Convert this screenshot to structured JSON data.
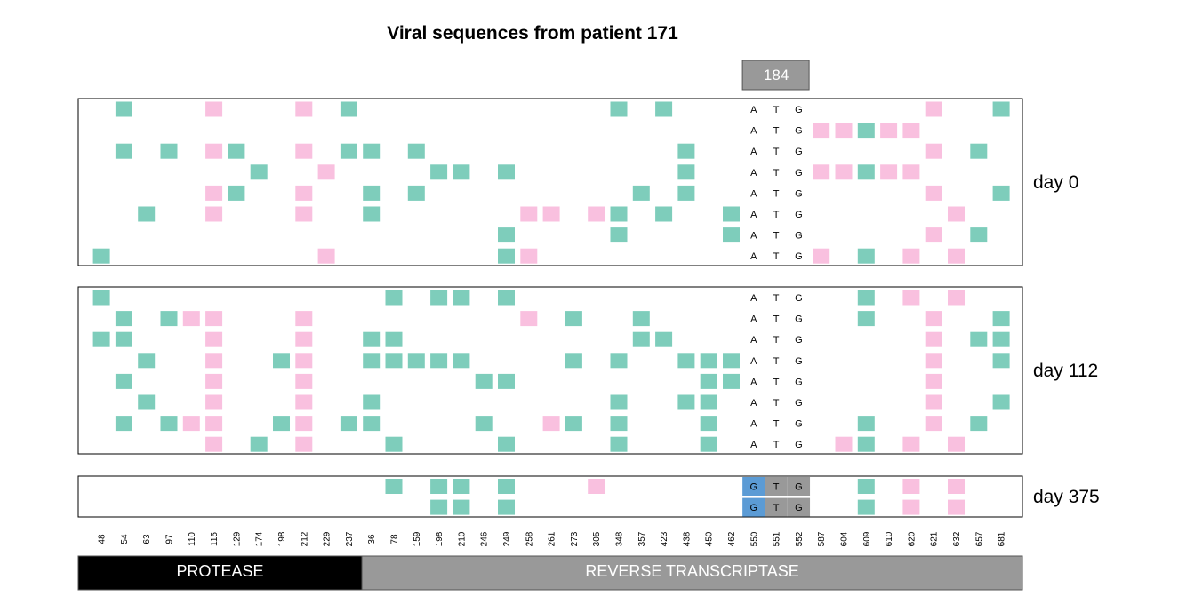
{
  "chart_data": {
    "type": "heatmap",
    "title": "Viral sequences from patient 171",
    "highlight_position": "184",
    "columns": [
      "48",
      "54",
      "63",
      "97",
      "110",
      "115",
      "129",
      "174",
      "198",
      "212",
      "229",
      "237",
      "36",
      "78",
      "159",
      "198",
      "210",
      "246",
      "249",
      "258",
      "261",
      "273",
      "305",
      "348",
      "357",
      "423",
      "438",
      "450",
      "462",
      "550",
      "551",
      "552",
      "587",
      "604",
      "609",
      "610",
      "620",
      "621",
      "632",
      "657",
      "681"
    ],
    "codon_columns": [
      29,
      30,
      31
    ],
    "colors": {
      "green": "#7ecdbb",
      "pink": "#f9c0df",
      "blue": "#5b9bd5",
      "codon_bg": "#999999",
      "protease": "#000000",
      "rt": "#999999"
    },
    "legend_keys": {
      "g": "green",
      "p": "pink"
    },
    "panels": [
      {
        "label": "day 0",
        "rows": [
          {
            "codon": [
              "A",
              "T",
              "G"
            ],
            "cells": [
              [
                1,
                "g"
              ],
              [
                5,
                "p"
              ],
              [
                9,
                "p"
              ],
              [
                11,
                "g"
              ],
              [
                23,
                "g"
              ],
              [
                25,
                "g"
              ],
              [
                37,
                "p"
              ],
              [
                40,
                "g"
              ]
            ]
          },
          {
            "codon": [
              "A",
              "T",
              "G"
            ],
            "cells": [
              [
                32,
                "p"
              ],
              [
                33,
                "p"
              ],
              [
                34,
                "g"
              ],
              [
                35,
                "p"
              ],
              [
                36,
                "p"
              ]
            ]
          },
          {
            "codon": [
              "A",
              "T",
              "G"
            ],
            "cells": [
              [
                1,
                "g"
              ],
              [
                3,
                "g"
              ],
              [
                5,
                "p"
              ],
              [
                6,
                "g"
              ],
              [
                9,
                "p"
              ],
              [
                11,
                "g"
              ],
              [
                12,
                "g"
              ],
              [
                14,
                "g"
              ],
              [
                26,
                "g"
              ],
              [
                37,
                "p"
              ],
              [
                39,
                "g"
              ]
            ]
          },
          {
            "codon": [
              "A",
              "T",
              "G"
            ],
            "cells": [
              [
                7,
                "g"
              ],
              [
                10,
                "p"
              ],
              [
                15,
                "g"
              ],
              [
                16,
                "g"
              ],
              [
                18,
                "g"
              ],
              [
                26,
                "g"
              ],
              [
                32,
                "p"
              ],
              [
                33,
                "p"
              ],
              [
                34,
                "g"
              ],
              [
                35,
                "p"
              ],
              [
                36,
                "p"
              ]
            ]
          },
          {
            "codon": [
              "A",
              "T",
              "G"
            ],
            "cells": [
              [
                5,
                "p"
              ],
              [
                6,
                "g"
              ],
              [
                9,
                "p"
              ],
              [
                12,
                "g"
              ],
              [
                14,
                "g"
              ],
              [
                24,
                "g"
              ],
              [
                26,
                "g"
              ],
              [
                37,
                "p"
              ],
              [
                40,
                "g"
              ]
            ]
          },
          {
            "codon": [
              "A",
              "T",
              "G"
            ],
            "cells": [
              [
                2,
                "g"
              ],
              [
                5,
                "p"
              ],
              [
                9,
                "p"
              ],
              [
                12,
                "g"
              ],
              [
                19,
                "p"
              ],
              [
                20,
                "p"
              ],
              [
                22,
                "p"
              ],
              [
                23,
                "g"
              ],
              [
                25,
                "g"
              ],
              [
                28,
                "g"
              ],
              [
                38,
                "p"
              ]
            ]
          },
          {
            "codon": [
              "A",
              "T",
              "G"
            ],
            "cells": [
              [
                18,
                "g"
              ],
              [
                23,
                "g"
              ],
              [
                28,
                "g"
              ],
              [
                37,
                "p"
              ],
              [
                39,
                "g"
              ]
            ]
          },
          {
            "codon": [
              "A",
              "T",
              "G"
            ],
            "cells": [
              [
                0,
                "g"
              ],
              [
                10,
                "p"
              ],
              [
                18,
                "g"
              ],
              [
                19,
                "p"
              ],
              [
                32,
                "p"
              ],
              [
                34,
                "g"
              ],
              [
                36,
                "p"
              ],
              [
                38,
                "p"
              ]
            ]
          }
        ]
      },
      {
        "label": "day 112",
        "rows": [
          {
            "codon": [
              "A",
              "T",
              "G"
            ],
            "cells": [
              [
                0,
                "g"
              ],
              [
                13,
                "g"
              ],
              [
                15,
                "g"
              ],
              [
                16,
                "g"
              ],
              [
                18,
                "g"
              ],
              [
                34,
                "g"
              ],
              [
                36,
                "p"
              ],
              [
                38,
                "p"
              ]
            ]
          },
          {
            "codon": [
              "A",
              "T",
              "G"
            ],
            "cells": [
              [
                1,
                "g"
              ],
              [
                3,
                "g"
              ],
              [
                4,
                "p"
              ],
              [
                5,
                "p"
              ],
              [
                9,
                "p"
              ],
              [
                19,
                "p"
              ],
              [
                21,
                "g"
              ],
              [
                24,
                "g"
              ],
              [
                34,
                "g"
              ],
              [
                37,
                "p"
              ],
              [
                40,
                "g"
              ]
            ]
          },
          {
            "codon": [
              "A",
              "T",
              "G"
            ],
            "cells": [
              [
                0,
                "g"
              ],
              [
                1,
                "g"
              ],
              [
                5,
                "p"
              ],
              [
                9,
                "p"
              ],
              [
                12,
                "g"
              ],
              [
                13,
                "g"
              ],
              [
                24,
                "g"
              ],
              [
                25,
                "g"
              ],
              [
                37,
                "p"
              ],
              [
                39,
                "g"
              ],
              [
                40,
                "g"
              ]
            ]
          },
          {
            "codon": [
              "A",
              "T",
              "G"
            ],
            "cells": [
              [
                2,
                "g"
              ],
              [
                5,
                "p"
              ],
              [
                8,
                "g"
              ],
              [
                9,
                "p"
              ],
              [
                12,
                "g"
              ],
              [
                13,
                "g"
              ],
              [
                14,
                "g"
              ],
              [
                15,
                "g"
              ],
              [
                16,
                "g"
              ],
              [
                21,
                "g"
              ],
              [
                23,
                "g"
              ],
              [
                26,
                "g"
              ],
              [
                27,
                "g"
              ],
              [
                28,
                "g"
              ],
              [
                37,
                "p"
              ],
              [
                40,
                "g"
              ]
            ]
          },
          {
            "codon": [
              "A",
              "T",
              "G"
            ],
            "cells": [
              [
                1,
                "g"
              ],
              [
                5,
                "p"
              ],
              [
                9,
                "p"
              ],
              [
                17,
                "g"
              ],
              [
                18,
                "g"
              ],
              [
                27,
                "g"
              ],
              [
                28,
                "g"
              ],
              [
                37,
                "p"
              ]
            ]
          },
          {
            "codon": [
              "A",
              "T",
              "G"
            ],
            "cells": [
              [
                2,
                "g"
              ],
              [
                5,
                "p"
              ],
              [
                9,
                "p"
              ],
              [
                12,
                "g"
              ],
              [
                23,
                "g"
              ],
              [
                26,
                "g"
              ],
              [
                27,
                "g"
              ],
              [
                37,
                "p"
              ],
              [
                40,
                "g"
              ]
            ]
          },
          {
            "codon": [
              "A",
              "T",
              "G"
            ],
            "cells": [
              [
                1,
                "g"
              ],
              [
                3,
                "g"
              ],
              [
                4,
                "p"
              ],
              [
                5,
                "p"
              ],
              [
                8,
                "g"
              ],
              [
                9,
                "p"
              ],
              [
                11,
                "g"
              ],
              [
                12,
                "g"
              ],
              [
                17,
                "g"
              ],
              [
                20,
                "p"
              ],
              [
                21,
                "g"
              ],
              [
                23,
                "g"
              ],
              [
                27,
                "g"
              ],
              [
                34,
                "g"
              ],
              [
                37,
                "p"
              ],
              [
                39,
                "g"
              ]
            ]
          },
          {
            "codon": [
              "A",
              "T",
              "G"
            ],
            "cells": [
              [
                5,
                "p"
              ],
              [
                7,
                "g"
              ],
              [
                9,
                "p"
              ],
              [
                13,
                "g"
              ],
              [
                18,
                "g"
              ],
              [
                23,
                "g"
              ],
              [
                27,
                "g"
              ],
              [
                33,
                "p"
              ],
              [
                34,
                "g"
              ],
              [
                36,
                "p"
              ],
              [
                38,
                "p"
              ]
            ]
          }
        ]
      },
      {
        "label": "day 375",
        "rows": [
          {
            "codon": [
              "G",
              "T",
              "G"
            ],
            "cells": [
              [
                13,
                "g"
              ],
              [
                15,
                "g"
              ],
              [
                16,
                "g"
              ],
              [
                18,
                "g"
              ],
              [
                22,
                "p"
              ],
              [
                34,
                "g"
              ],
              [
                36,
                "p"
              ],
              [
                38,
                "p"
              ]
            ]
          },
          {
            "codon": [
              "G",
              "T",
              "G"
            ],
            "cells": [
              [
                15,
                "g"
              ],
              [
                16,
                "g"
              ],
              [
                18,
                "g"
              ],
              [
                34,
                "g"
              ],
              [
                36,
                "p"
              ],
              [
                38,
                "p"
              ]
            ]
          }
        ]
      }
    ],
    "regions": [
      {
        "label": "PROTEASE",
        "first_column": 0,
        "last_column": 11
      },
      {
        "label": "REVERSE TRANSCRIPTASE",
        "first_column": 12,
        "last_column": 40
      }
    ]
  }
}
